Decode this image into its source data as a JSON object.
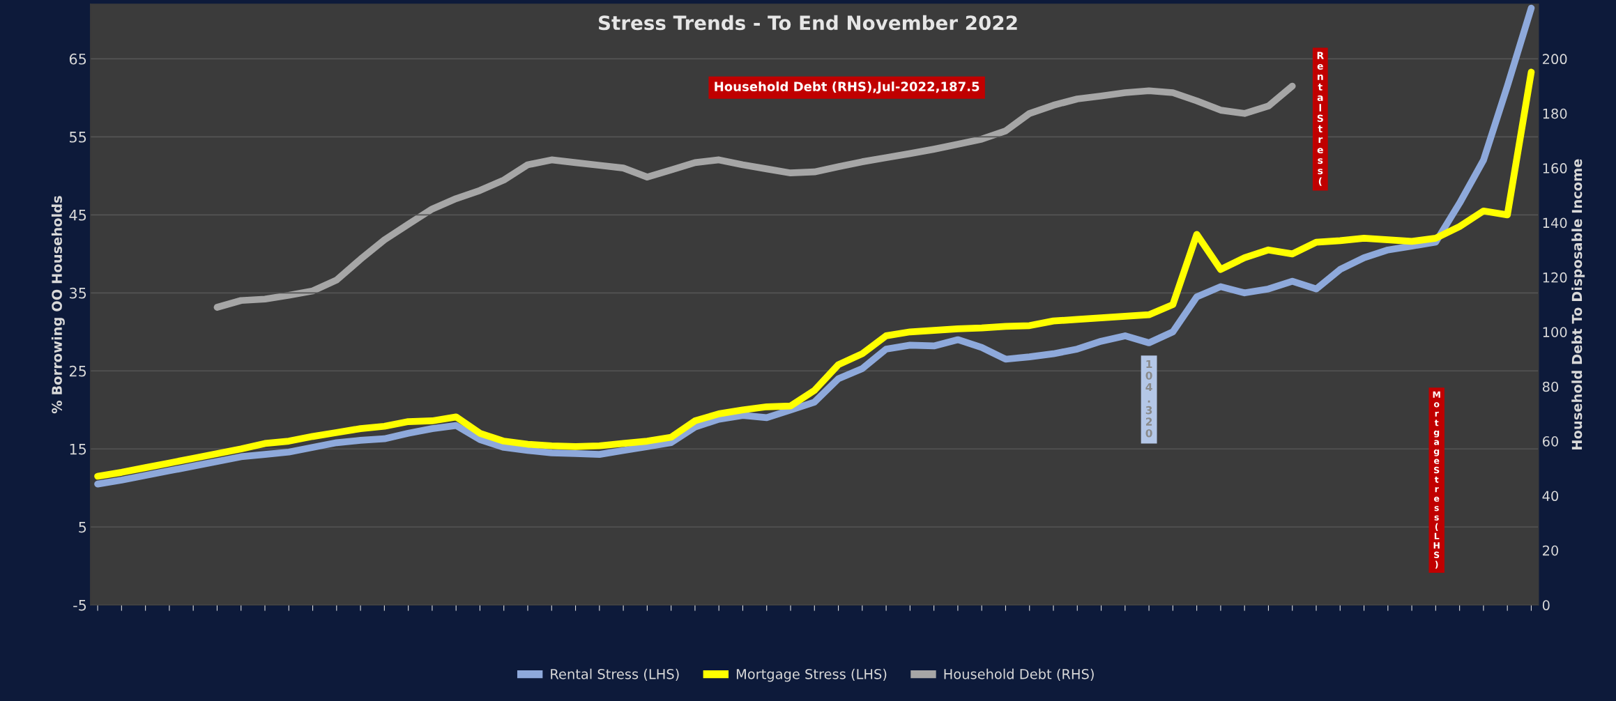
{
  "chart_data": {
    "type": "line",
    "title": "Stress Trends - To End November 2022",
    "ylabel": "% Borrowing OO Households",
    "y2label": "Household Debt To Disposable Income",
    "categories": [
      null,
      null,
      null,
      null,
      null,
      null,
      null,
      null,
      null,
      null,
      null,
      null,
      null,
      null,
      null,
      null,
      null,
      null,
      null,
      null,
      null,
      null,
      null,
      null,
      null,
      null,
      null,
      null,
      null,
      null,
      null,
      null,
      null,
      null,
      null,
      null,
      null,
      null,
      null,
      null,
      null,
      null,
      null,
      null,
      null,
      null,
      null,
      null,
      null,
      null,
      null,
      null,
      null,
      null,
      null,
      null,
      null,
      null,
      null,
      null,
      null
    ],
    "series": [
      {
        "name": "Rental Stress (LHS)",
        "color": "#8ea9db",
        "values": [
          10.5,
          11.0,
          11.6,
          12.2,
          12.8,
          13.4,
          14.0,
          14.3,
          14.6,
          15.2,
          15.8,
          16.1,
          16.3,
          17.0,
          17.6,
          18.0,
          16.2,
          15.2,
          14.8,
          14.5,
          14.4,
          14.3,
          14.8,
          15.3,
          15.8,
          17.8,
          18.8,
          19.3,
          19.0,
          20.0,
          21.0,
          24.0,
          25.3,
          27.8,
          28.3,
          28.2,
          29.0,
          28.0,
          26.5,
          26.8,
          27.2,
          27.8,
          28.8,
          29.5,
          28.6,
          30.0,
          34.5,
          35.8,
          35.0,
          35.5,
          36.5,
          35.5,
          38.0,
          39.5,
          40.5,
          41.0,
          41.5,
          46.5,
          52.0,
          61.5,
          71.5
        ]
      },
      {
        "name": "Mortgage Stress (LHS)",
        "color": "#ffff00",
        "values": [
          11.5,
          12.0,
          12.6,
          13.2,
          13.8,
          14.4,
          15.0,
          15.7,
          16.0,
          16.6,
          17.1,
          17.6,
          17.9,
          18.5,
          18.6,
          19.1,
          17.0,
          16.0,
          15.6,
          15.4,
          15.3,
          15.4,
          15.7,
          16.0,
          16.5,
          18.6,
          19.5,
          20.0,
          20.4,
          20.5,
          22.5,
          25.8,
          27.2,
          29.5,
          30.0,
          30.2,
          30.4,
          30.5,
          30.7,
          30.8,
          31.4,
          31.6,
          31.8,
          32.0,
          32.2,
          33.5,
          42.5,
          38.0,
          39.5,
          40.5,
          40.0,
          41.5,
          41.7,
          42.0,
          41.8,
          41.6,
          42.0,
          43.5,
          45.5,
          45.0,
          63.3
        ]
      },
      {
        "name": "Household Debt (RHS)",
        "color": "#a6a6a6",
        "axis": "y2",
        "values": [
          null,
          null,
          null,
          null,
          null,
          109,
          111.5,
          112,
          113.4,
          115,
          119,
          126.6,
          133.7,
          139.4,
          145,
          148.8,
          151.8,
          155.6,
          161.2,
          163,
          162,
          161,
          160,
          156.7,
          159.3,
          162,
          163,
          161.2,
          159.7,
          158.2,
          158.6,
          160.5,
          162.3,
          163.8,
          165.3,
          166.9,
          168.7,
          170.6,
          173.6,
          180,
          183,
          185.3,
          186.4,
          187.6,
          188.3,
          187.6,
          184.6,
          181.2,
          180,
          182.7,
          190,
          null,
          null,
          null,
          null,
          null,
          null,
          null,
          null,
          null,
          null
        ]
      }
    ],
    "ylim": [
      -5,
      72
    ],
    "yticks": [
      -5,
      5,
      15,
      25,
      35,
      45,
      55,
      65
    ],
    "y2lim": [
      0,
      220
    ],
    "y2ticks": [
      0,
      20,
      40,
      60,
      80,
      100,
      120,
      140,
      160,
      180,
      200
    ],
    "grid": "y",
    "legend": "bottom",
    "line_style": "solid",
    "marker": "none",
    "annotations": [
      "Household Debt (RHS),Jul-2022,187.5",
      "Rental Stress (",
      "104.320",
      "Mortgage Stress (LHS)"
    ]
  }
}
